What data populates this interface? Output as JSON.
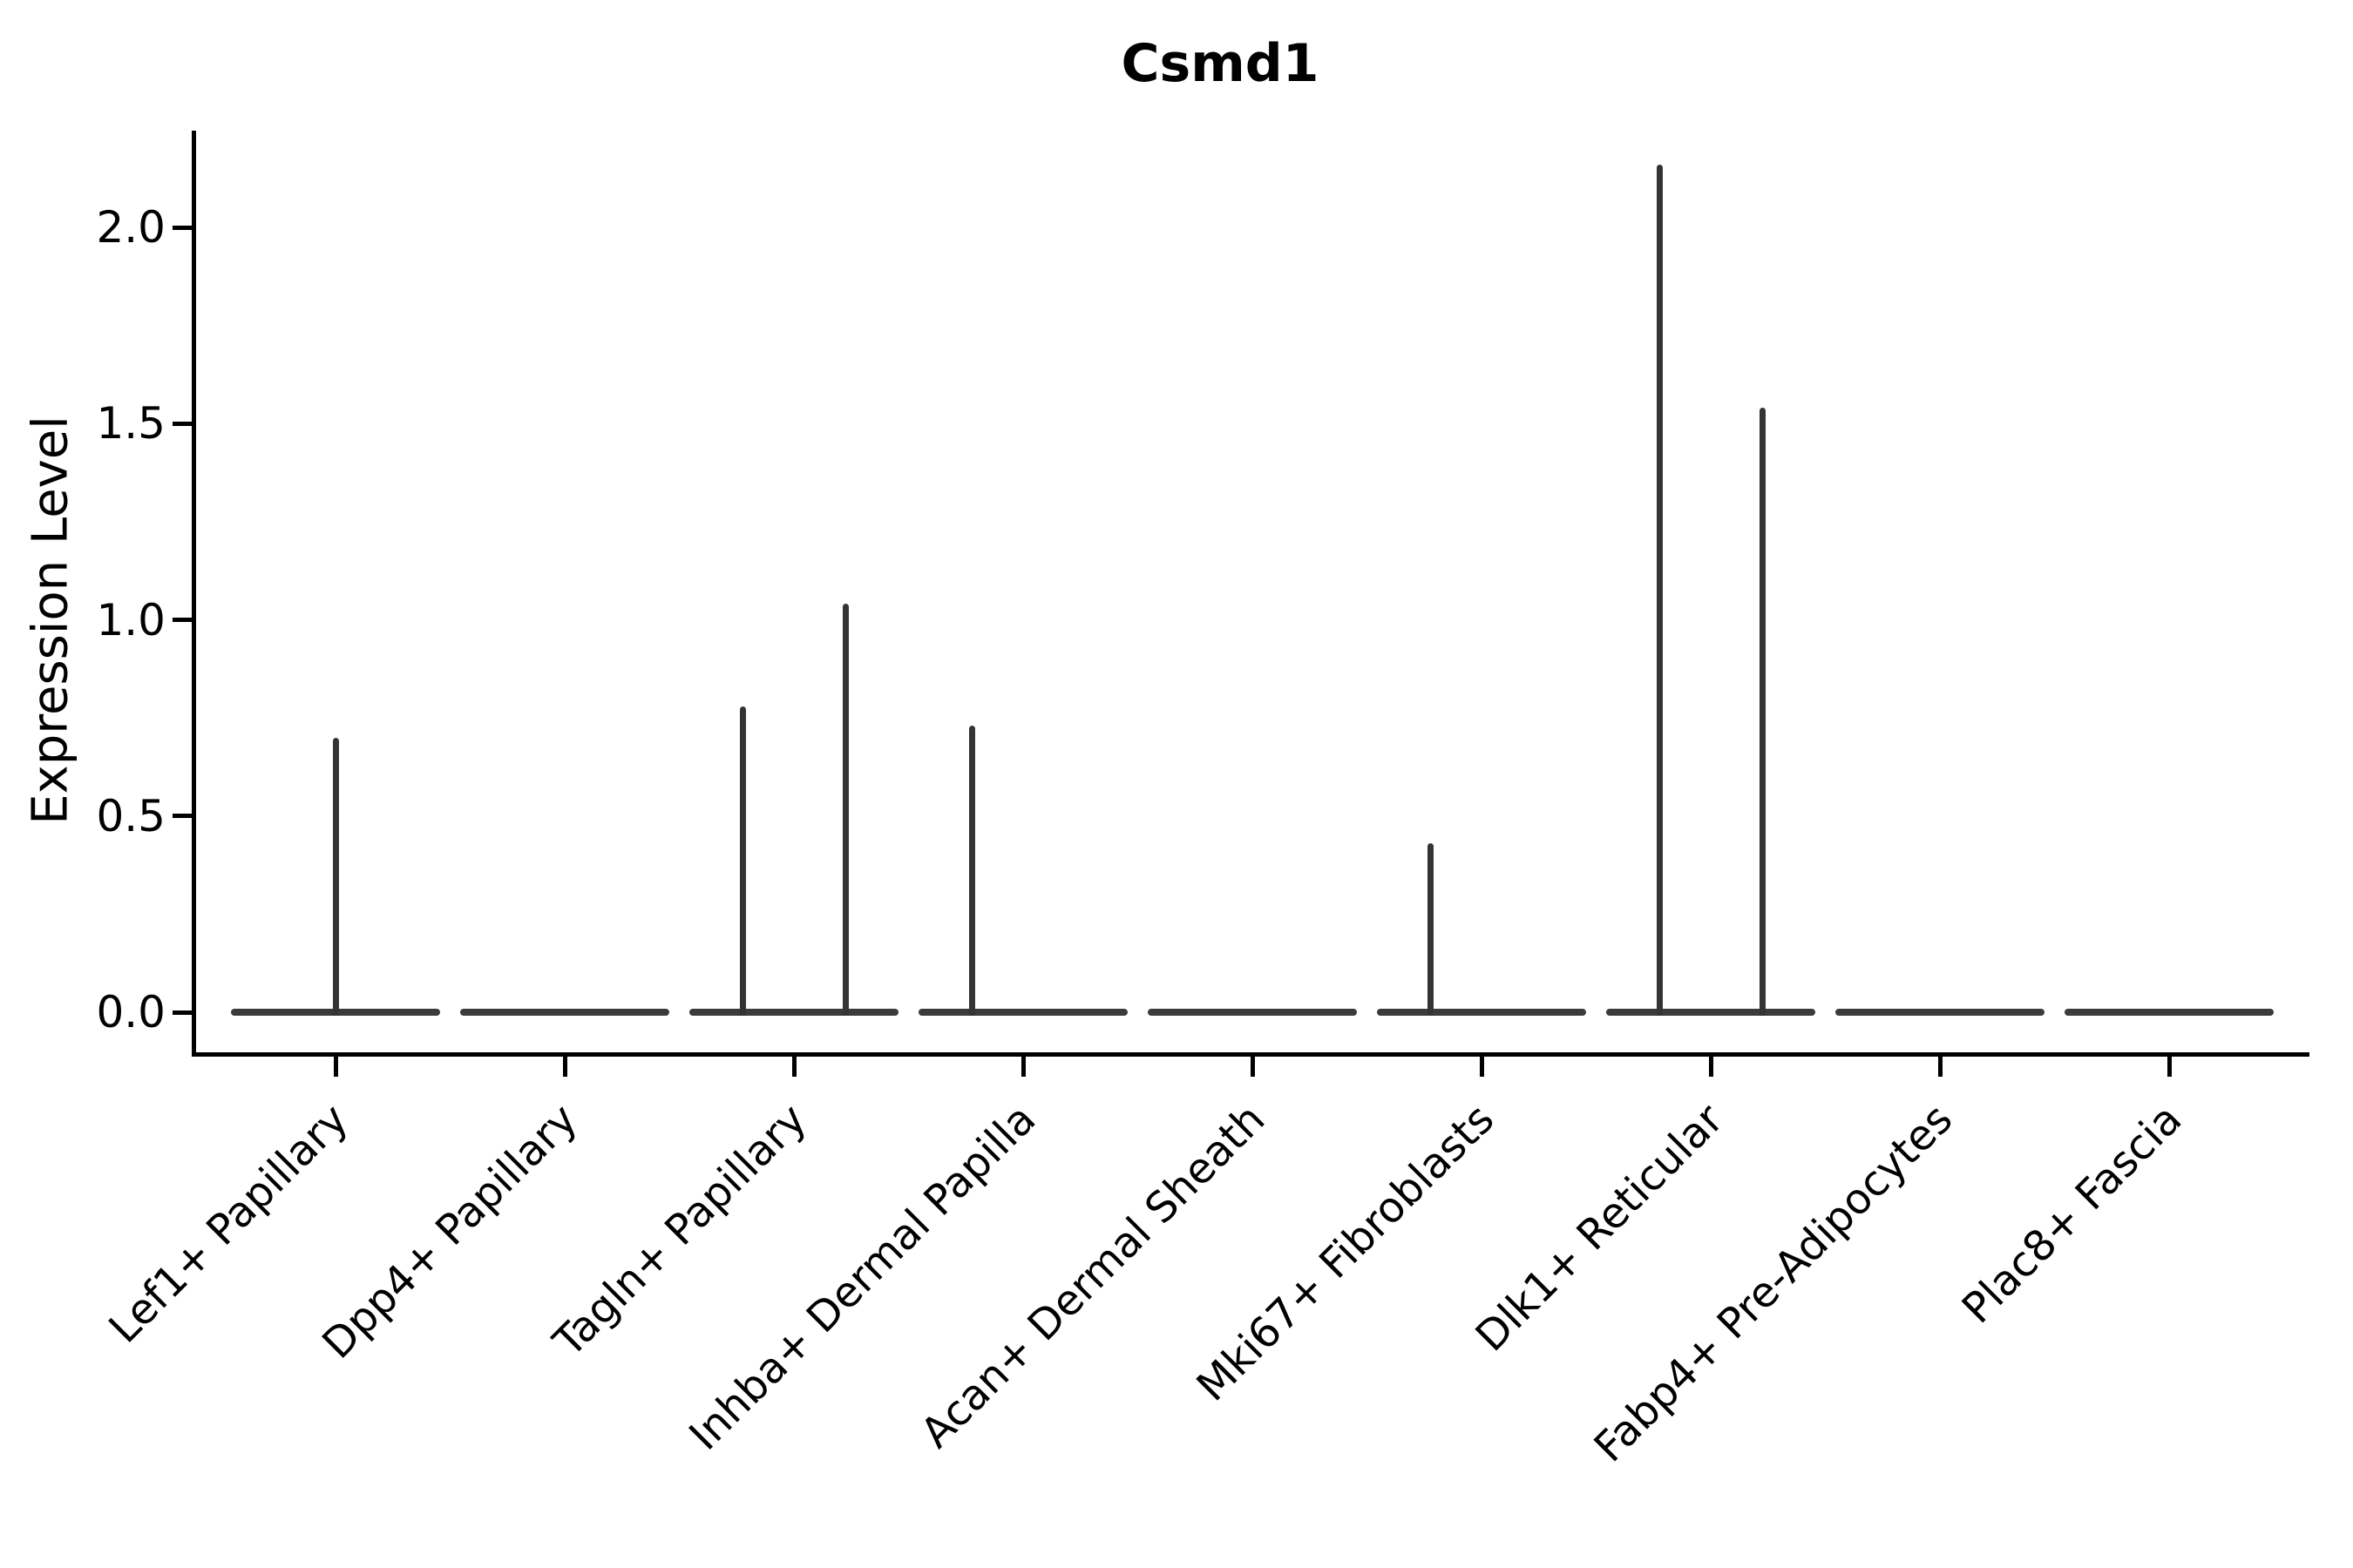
{
  "title": "Csmd1",
  "y_axis": {
    "label": "Expression Level",
    "tick_labels": [
      "0.0",
      "0.5",
      "1.0",
      "1.5",
      "2.0"
    ],
    "tick_values": [
      0.0,
      0.5,
      1.0,
      1.5,
      2.0
    ]
  },
  "x_axis": {
    "label": "",
    "tick_label_rotation_deg": 45
  },
  "colors": {
    "violin_line": "#3b3b3b",
    "spike_line": "#343434",
    "spine": "#000000",
    "text": "#000000",
    "background": "#ffffff"
  },
  "chart_data": {
    "type": "violin",
    "title": "Csmd1",
    "xlabel": "",
    "ylabel": "Expression Level",
    "ylim": [
      -0.11,
      2.25
    ],
    "yticks": [
      0.0,
      0.5,
      1.0,
      1.5,
      2.0
    ],
    "grid": false,
    "legend": null,
    "categories": [
      "Lef1+ Papillary",
      "Dpp4+ Papillary",
      "Tagln+ Papillary",
      "Inhba+ Dermal Papilla",
      "Acan+ Dermal Sheath",
      "Mki67+ Fibroblasts",
      "Dlk1+ Reticular",
      "Fabp4+ Pre-Adipocytes",
      "Plac8+ Fascia"
    ],
    "violins": [
      {
        "category": "Lef1+ Papillary",
        "body_at_zero": true,
        "spikes": [
          {
            "side": "center",
            "max": 0.7
          }
        ]
      },
      {
        "category": "Dpp4+ Papillary",
        "body_at_zero": true,
        "spikes": []
      },
      {
        "category": "Tagln+ Papillary",
        "body_at_zero": true,
        "spikes": [
          {
            "side": "left",
            "max": 0.78
          },
          {
            "side": "right",
            "max": 1.04
          }
        ]
      },
      {
        "category": "Inhba+ Dermal Papilla",
        "body_at_zero": true,
        "spikes": [
          {
            "side": "left",
            "max": 0.73
          }
        ]
      },
      {
        "category": "Acan+ Dermal Sheath",
        "body_at_zero": true,
        "spikes": []
      },
      {
        "category": "Mki67+ Fibroblasts",
        "body_at_zero": true,
        "spikes": [
          {
            "side": "left",
            "max": 0.43
          }
        ]
      },
      {
        "category": "Dlk1+ Reticular",
        "body_at_zero": true,
        "spikes": [
          {
            "side": "left",
            "max": 2.16
          },
          {
            "side": "right",
            "max": 1.54
          }
        ]
      },
      {
        "category": "Fabp4+ Pre-Adipocytes",
        "body_at_zero": true,
        "spikes": []
      },
      {
        "category": "Plac8+ Fascia",
        "body_at_zero": true,
        "spikes": []
      }
    ]
  }
}
